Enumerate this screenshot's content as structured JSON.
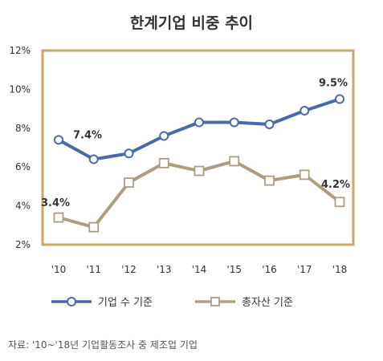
{
  "title": "한계기업 비중 추이",
  "source": "자료: '10~'18년 기업활동조사 중 제조업 기업",
  "colors": {
    "frame": "#c9a66b",
    "series1": "#4a6aa8",
    "series2": "#ad9d82"
  },
  "chart_data": {
    "type": "line",
    "x": [
      "'10",
      "'11",
      "'12",
      "'13",
      "'14",
      "'15",
      "'16",
      "'17",
      "'18"
    ],
    "ylim": [
      2,
      12
    ],
    "yticks": [
      "2%",
      "4%",
      "6%",
      "8%",
      "10%",
      "12%"
    ],
    "grid": false,
    "legend_position": "bottom",
    "series": [
      {
        "name": "기업 수 기준",
        "marker": "circle",
        "values": [
          7.4,
          6.4,
          6.7,
          7.6,
          8.3,
          8.3,
          8.2,
          8.9,
          9.5
        ]
      },
      {
        "name": "총자산 기준",
        "marker": "square",
        "values": [
          3.4,
          2.9,
          5.2,
          6.2,
          5.8,
          6.3,
          5.3,
          5.6,
          4.2
        ]
      }
    ],
    "annotations": [
      {
        "series": 0,
        "index": 0,
        "text": "7.4%"
      },
      {
        "series": 0,
        "index": 8,
        "text": "9.5%"
      },
      {
        "series": 1,
        "index": 0,
        "text": "3.4%"
      },
      {
        "series": 1,
        "index": 8,
        "text": "4.2%"
      }
    ]
  }
}
